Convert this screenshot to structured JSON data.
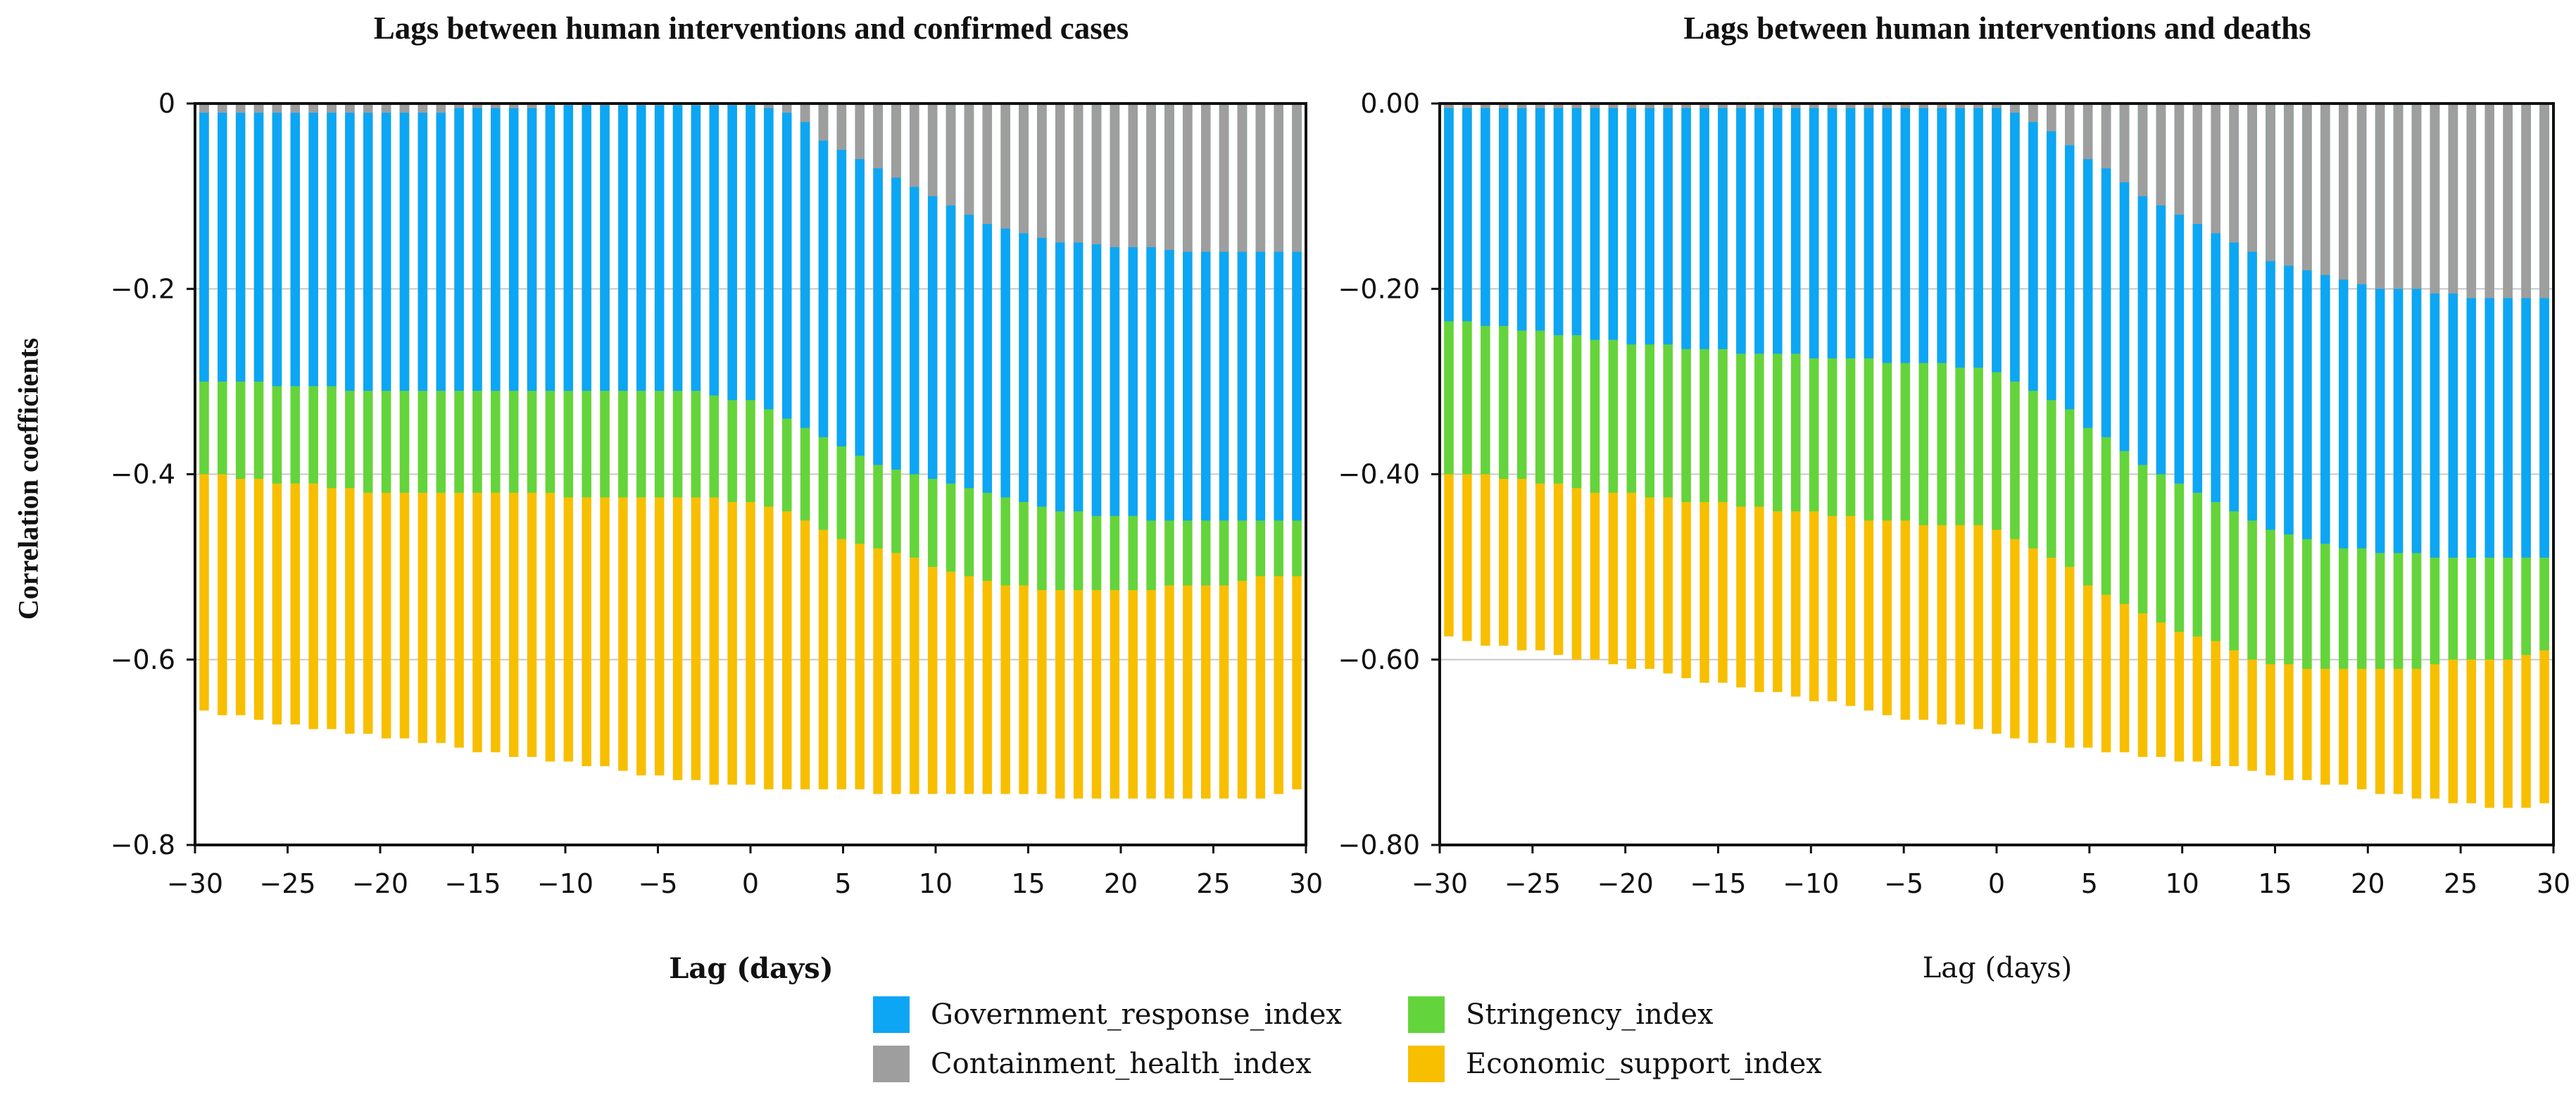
{
  "chart_data": [
    {
      "type": "bar",
      "title": "Lags between human interventions and confirmed cases",
      "xlabel": "Lag (days)",
      "ylabel": "Correlation coefficients",
      "xlim": [
        -30,
        30
      ],
      "ylim": [
        -0.8,
        0
      ],
      "x_tick_labels": [
        "−30",
        "−25",
        "−20",
        "−15",
        "−10",
        "−5",
        "0",
        "5",
        "10",
        "15",
        "20",
        "25",
        "30"
      ],
      "y_tick_labels": [
        "0",
        "−0.2",
        "−0.4",
        "−0.6",
        "−0.8"
      ],
      "grid_y": [
        -0.2,
        -0.4,
        -0.6
      ],
      "x": [
        -30,
        -29,
        -28,
        -27,
        -26,
        -25,
        -24,
        -23,
        -22,
        -21,
        -20,
        -19,
        -18,
        -17,
        -16,
        -15,
        -14,
        -13,
        -12,
        -11,
        -10,
        -9,
        -8,
        -7,
        -6,
        -5,
        -4,
        -3,
        -2,
        -1,
        0,
        1,
        2,
        3,
        4,
        5,
        6,
        7,
        8,
        9,
        10,
        11,
        12,
        13,
        14,
        15,
        16,
        17,
        18,
        19,
        20,
        21,
        22,
        23,
        24,
        25,
        26,
        27,
        28,
        29,
        30
      ],
      "series": [
        {
          "name": "Government_response_index",
          "values": [
            -0.3,
            -0.3,
            -0.3,
            -0.3,
            -0.305,
            -0.305,
            -0.305,
            -0.305,
            -0.31,
            -0.31,
            -0.31,
            -0.31,
            -0.31,
            -0.31,
            -0.31,
            -0.31,
            -0.31,
            -0.31,
            -0.31,
            -0.31,
            -0.31,
            -0.31,
            -0.31,
            -0.31,
            -0.31,
            -0.31,
            -0.31,
            -0.31,
            -0.315,
            -0.32,
            -0.32,
            -0.33,
            -0.34,
            -0.35,
            -0.36,
            -0.37,
            -0.38,
            -0.39,
            -0.395,
            -0.4,
            -0.405,
            -0.41,
            -0.415,
            -0.42,
            -0.425,
            -0.43,
            -0.435,
            -0.44,
            -0.44,
            -0.445,
            -0.445,
            -0.445,
            -0.45,
            -0.45,
            -0.45,
            -0.45,
            -0.45,
            -0.45,
            -0.45,
            -0.45,
            -0.45
          ]
        },
        {
          "name": "Containment_health_index",
          "values": [
            -0.01,
            -0.01,
            -0.01,
            -0.01,
            -0.01,
            -0.01,
            -0.01,
            -0.01,
            -0.01,
            -0.01,
            -0.01,
            -0.01,
            -0.01,
            -0.01,
            -0.005,
            -0.005,
            -0.005,
            -0.005,
            -0.005,
            -0.002,
            -0.002,
            -0.002,
            -0.002,
            -0.002,
            -0.002,
            -0.002,
            -0.002,
            -0.002,
            -0.002,
            -0.002,
            -0.002,
            -0.005,
            -0.01,
            -0.02,
            -0.04,
            -0.05,
            -0.06,
            -0.07,
            -0.08,
            -0.09,
            -0.1,
            -0.11,
            -0.12,
            -0.13,
            -0.135,
            -0.14,
            -0.145,
            -0.15,
            -0.15,
            -0.152,
            -0.155,
            -0.155,
            -0.155,
            -0.158,
            -0.16,
            -0.16,
            -0.16,
            -0.16,
            -0.16,
            -0.16,
            -0.16
          ]
        },
        {
          "name": "Stringency_index",
          "values": [
            -0.4,
            -0.4,
            -0.405,
            -0.405,
            -0.41,
            -0.41,
            -0.41,
            -0.415,
            -0.415,
            -0.42,
            -0.42,
            -0.42,
            -0.42,
            -0.42,
            -0.42,
            -0.42,
            -0.42,
            -0.42,
            -0.42,
            -0.42,
            -0.425,
            -0.425,
            -0.425,
            -0.425,
            -0.425,
            -0.425,
            -0.425,
            -0.425,
            -0.425,
            -0.43,
            -0.43,
            -0.435,
            -0.44,
            -0.45,
            -0.46,
            -0.47,
            -0.475,
            -0.48,
            -0.485,
            -0.49,
            -0.5,
            -0.505,
            -0.51,
            -0.515,
            -0.52,
            -0.52,
            -0.525,
            -0.525,
            -0.525,
            -0.525,
            -0.525,
            -0.525,
            -0.525,
            -0.52,
            -0.52,
            -0.52,
            -0.52,
            -0.515,
            -0.51,
            -0.51,
            -0.51
          ]
        },
        {
          "name": "Economic_support_index",
          "values": [
            -0.655,
            -0.66,
            -0.66,
            -0.665,
            -0.67,
            -0.67,
            -0.675,
            -0.675,
            -0.68,
            -0.68,
            -0.685,
            -0.685,
            -0.69,
            -0.69,
            -0.695,
            -0.7,
            -0.7,
            -0.705,
            -0.705,
            -0.71,
            -0.71,
            -0.715,
            -0.715,
            -0.72,
            -0.725,
            -0.725,
            -0.73,
            -0.73,
            -0.735,
            -0.735,
            -0.735,
            -0.74,
            -0.74,
            -0.74,
            -0.74,
            -0.74,
            -0.74,
            -0.745,
            -0.745,
            -0.745,
            -0.745,
            -0.745,
            -0.745,
            -0.745,
            -0.745,
            -0.745,
            -0.745,
            -0.75,
            -0.75,
            -0.75,
            -0.75,
            -0.75,
            -0.75,
            -0.75,
            -0.75,
            -0.75,
            -0.75,
            -0.75,
            -0.75,
            -0.745,
            -0.74
          ]
        }
      ]
    },
    {
      "type": "bar",
      "title": "Lags between human interventions and deaths",
      "xlabel": "Lag (days)",
      "ylabel": "",
      "xlim": [
        -30,
        30
      ],
      "ylim": [
        -0.8,
        0
      ],
      "x_tick_labels": [
        "−30",
        "−25",
        "−20",
        "−15",
        "−10",
        "−5",
        "0",
        "5",
        "10",
        "15",
        "20",
        "25",
        "30"
      ],
      "y_tick_labels": [
        "0.00",
        "−0.20",
        "−0.40",
        "−0.60",
        "−0.80"
      ],
      "grid_y": [
        -0.2,
        -0.4,
        -0.6
      ],
      "x": [
        -30,
        -29,
        -28,
        -27,
        -26,
        -25,
        -24,
        -23,
        -22,
        -21,
        -20,
        -19,
        -18,
        -17,
        -16,
        -15,
        -14,
        -13,
        -12,
        -11,
        -10,
        -9,
        -8,
        -7,
        -6,
        -5,
        -4,
        -3,
        -2,
        -1,
        0,
        1,
        2,
        3,
        4,
        5,
        6,
        7,
        8,
        9,
        10,
        11,
        12,
        13,
        14,
        15,
        16,
        17,
        18,
        19,
        20,
        21,
        22,
        23,
        24,
        25,
        26,
        27,
        28,
        29,
        30
      ],
      "series": [
        {
          "name": "Government_response_index",
          "values": [
            -0.235,
            -0.235,
            -0.24,
            -0.24,
            -0.245,
            -0.245,
            -0.25,
            -0.25,
            -0.255,
            -0.255,
            -0.26,
            -0.26,
            -0.26,
            -0.265,
            -0.265,
            -0.265,
            -0.27,
            -0.27,
            -0.27,
            -0.27,
            -0.275,
            -0.275,
            -0.275,
            -0.275,
            -0.28,
            -0.28,
            -0.28,
            -0.28,
            -0.285,
            -0.285,
            -0.29,
            -0.3,
            -0.31,
            -0.32,
            -0.33,
            -0.35,
            -0.36,
            -0.375,
            -0.39,
            -0.4,
            -0.41,
            -0.42,
            -0.43,
            -0.44,
            -0.45,
            -0.46,
            -0.465,
            -0.47,
            -0.475,
            -0.48,
            -0.48,
            -0.485,
            -0.485,
            -0.485,
            -0.49,
            -0.49,
            -0.49,
            -0.49,
            -0.49,
            -0.49,
            -0.49
          ]
        },
        {
          "name": "Containment_health_index",
          "values": [
            -0.005,
            -0.005,
            -0.005,
            -0.005,
            -0.005,
            -0.005,
            -0.005,
            -0.005,
            -0.005,
            -0.005,
            -0.005,
            -0.005,
            -0.005,
            -0.005,
            -0.005,
            -0.005,
            -0.005,
            -0.005,
            -0.005,
            -0.005,
            -0.005,
            -0.005,
            -0.005,
            -0.005,
            -0.005,
            -0.005,
            -0.005,
            -0.005,
            -0.005,
            -0.005,
            -0.005,
            -0.01,
            -0.02,
            -0.03,
            -0.045,
            -0.06,
            -0.07,
            -0.085,
            -0.1,
            -0.11,
            -0.12,
            -0.13,
            -0.14,
            -0.15,
            -0.16,
            -0.17,
            -0.175,
            -0.18,
            -0.185,
            -0.19,
            -0.195,
            -0.2,
            -0.2,
            -0.2,
            -0.205,
            -0.205,
            -0.21,
            -0.21,
            -0.21,
            -0.21,
            -0.21
          ]
        },
        {
          "name": "Stringency_index",
          "values": [
            -0.4,
            -0.4,
            -0.4,
            -0.405,
            -0.405,
            -0.41,
            -0.41,
            -0.415,
            -0.42,
            -0.42,
            -0.42,
            -0.425,
            -0.425,
            -0.43,
            -0.43,
            -0.43,
            -0.435,
            -0.435,
            -0.44,
            -0.44,
            -0.44,
            -0.445,
            -0.445,
            -0.45,
            -0.45,
            -0.45,
            -0.455,
            -0.455,
            -0.455,
            -0.455,
            -0.46,
            -0.47,
            -0.48,
            -0.49,
            -0.5,
            -0.52,
            -0.53,
            -0.54,
            -0.55,
            -0.56,
            -0.57,
            -0.575,
            -0.58,
            -0.59,
            -0.6,
            -0.605,
            -0.605,
            -0.61,
            -0.61,
            -0.61,
            -0.61,
            -0.61,
            -0.61,
            -0.61,
            -0.605,
            -0.6,
            -0.6,
            -0.6,
            -0.6,
            -0.595,
            -0.59
          ]
        },
        {
          "name": "Economic_support_index",
          "values": [
            -0.575,
            -0.58,
            -0.585,
            -0.585,
            -0.59,
            -0.59,
            -0.595,
            -0.6,
            -0.6,
            -0.605,
            -0.61,
            -0.61,
            -0.615,
            -0.62,
            -0.625,
            -0.625,
            -0.63,
            -0.635,
            -0.635,
            -0.64,
            -0.645,
            -0.645,
            -0.65,
            -0.655,
            -0.66,
            -0.665,
            -0.665,
            -0.67,
            -0.67,
            -0.675,
            -0.68,
            -0.685,
            -0.69,
            -0.69,
            -0.695,
            -0.695,
            -0.7,
            -0.7,
            -0.705,
            -0.705,
            -0.71,
            -0.71,
            -0.715,
            -0.715,
            -0.72,
            -0.725,
            -0.73,
            -0.73,
            -0.735,
            -0.735,
            -0.74,
            -0.745,
            -0.745,
            -0.75,
            -0.75,
            -0.755,
            -0.755,
            -0.76,
            -0.76,
            -0.76,
            -0.755
          ]
        }
      ]
    }
  ],
  "legend": {
    "items": [
      {
        "label": "Government_response_index",
        "color": "#0ca6f4"
      },
      {
        "label": "Stringency_index",
        "color": "#64d43c"
      },
      {
        "label": "Containment_health_index",
        "color": "#9e9e9e"
      },
      {
        "label": "Economic_support_index",
        "color": "#f7bf00"
      }
    ]
  },
  "colors": {
    "Government_response_index": "#0ca6f4",
    "Containment_health_index": "#9e9e9e",
    "Stringency_index": "#64d43c",
    "Economic_support_index": "#f7bf00",
    "grid": "#c8c8c8",
    "axis": "#111111"
  }
}
